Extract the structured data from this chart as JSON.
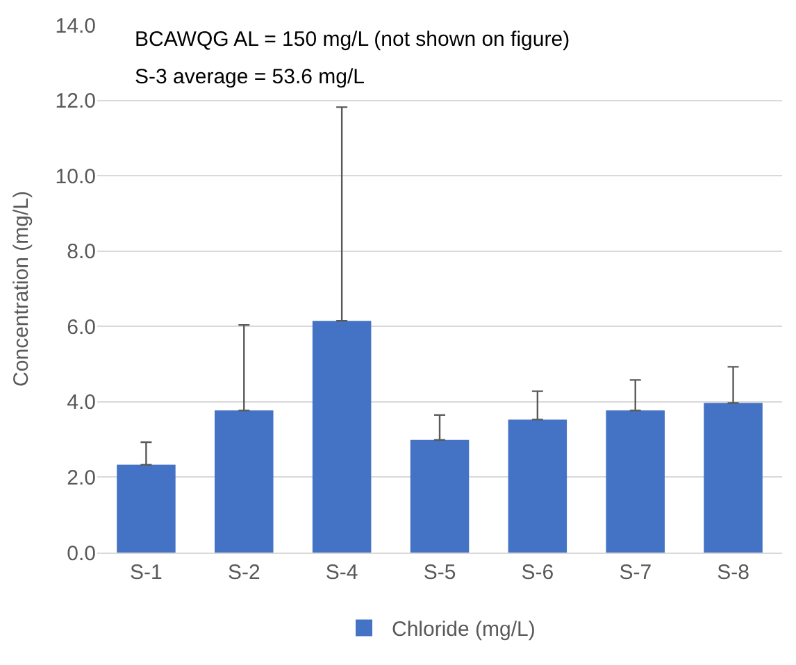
{
  "chart_data": {
    "type": "bar",
    "ylabel": "Concentration (mg/L)",
    "categories": [
      "S-1",
      "S-2",
      "S-4",
      "S-5",
      "S-6",
      "S-7",
      "S-8"
    ],
    "series": [
      {
        "name": "Chloride (mg/L)",
        "color": "#4472c4",
        "values": [
          2.33,
          3.77,
          6.15,
          2.99,
          3.53,
          3.77,
          3.97
        ],
        "errors": [
          [
            2.33,
            2.93
          ],
          [
            3.77,
            6.04
          ],
          [
            6.15,
            11.82
          ],
          [
            2.99,
            3.65
          ],
          [
            3.53,
            4.28
          ],
          [
            3.77,
            4.58
          ],
          [
            3.97,
            4.93
          ]
        ]
      }
    ],
    "ylim": [
      0,
      14
    ],
    "yticks": [
      {
        "value": 0,
        "label": "0.0"
      },
      {
        "value": 2,
        "label": "2.0"
      },
      {
        "value": 4,
        "label": "4.0"
      },
      {
        "value": 6,
        "label": "6.0"
      },
      {
        "value": 8,
        "label": "8.0"
      },
      {
        "value": 10,
        "label": "10.0"
      },
      {
        "value": 12,
        "label": "12.0"
      },
      {
        "value": 14,
        "label": "14.0"
      }
    ],
    "grid": "y",
    "legend": "bottom",
    "annotations": [
      "BCAWQG AL = 150 mg/L (not shown on figure)",
      "S-3 average = 53.6 mg/L"
    ]
  }
}
